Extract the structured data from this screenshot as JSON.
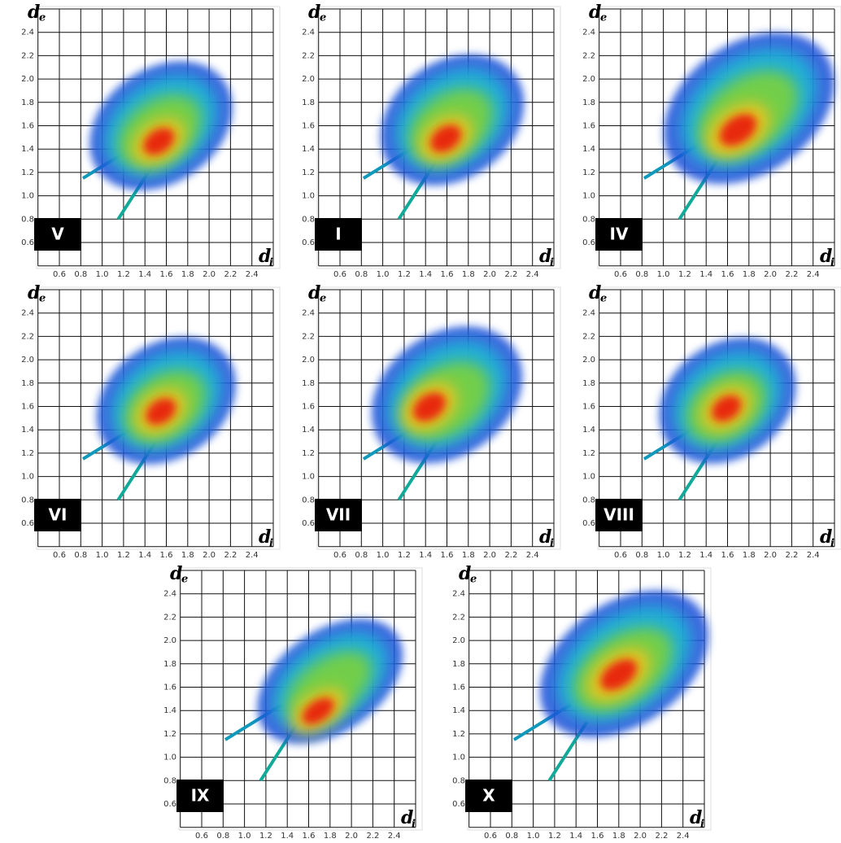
{
  "axis_x": {
    "main": "d",
    "sub": "i"
  },
  "axis_y": {
    "main": "d",
    "sub": "e"
  },
  "ticks": [
    0.6,
    0.8,
    {
      "value": 1,
      "label": "1.0"
    },
    1.2,
    1.4,
    1.6,
    1.8,
    {
      "value": 2,
      "label": "2.0"
    },
    2.2,
    2.4
  ],
  "panels": [
    {
      "label": "V"
    },
    {
      "label": "I"
    },
    {
      "label": "IV"
    },
    {
      "label": "VI"
    },
    {
      "label": "VII"
    },
    {
      "label": "VIII"
    },
    {
      "label": "IX"
    },
    {
      "label": "X"
    }
  ]
}
